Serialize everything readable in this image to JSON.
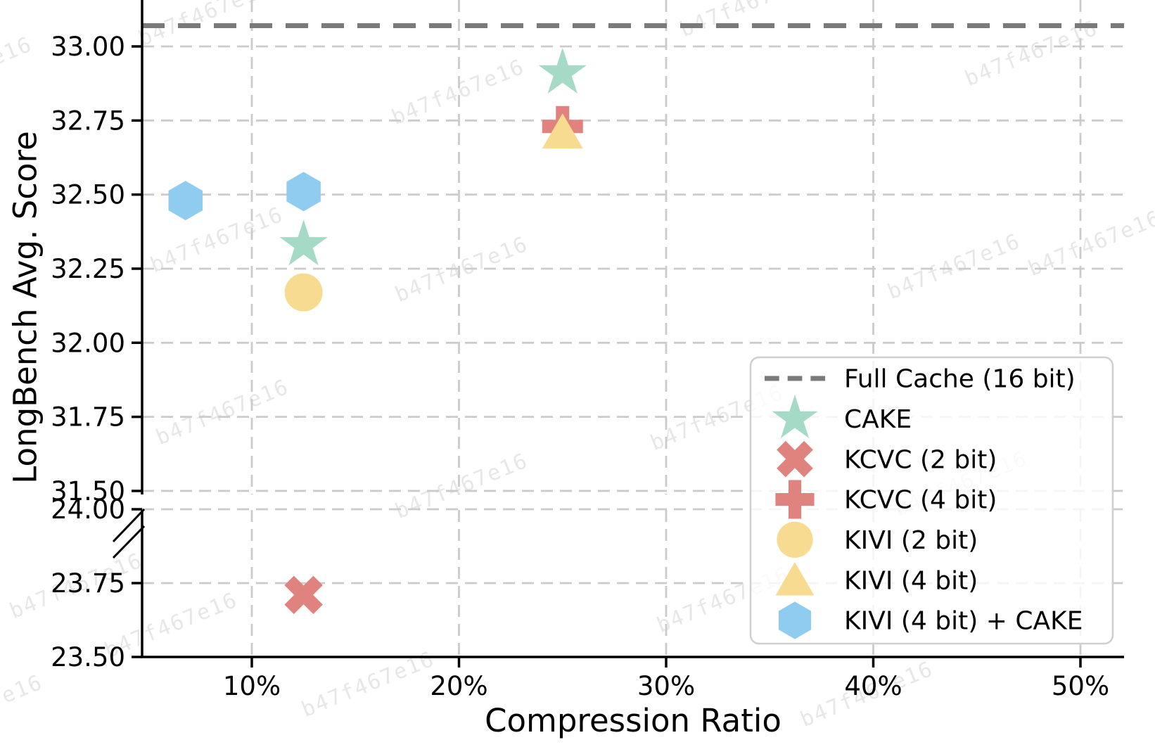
{
  "watermark": {
    "text": "b47f467e16"
  },
  "chart_data": {
    "type": "scatter",
    "title": "",
    "xlabel": "Compression Ratio",
    "ylabel": "LongBench Avg. Score",
    "x_axis": {
      "tick_labels": [
        "10%",
        "20%",
        "30%",
        "40%",
        "50%"
      ],
      "tick_values": [
        10,
        20,
        30,
        40,
        50
      ],
      "range_percent": [
        4.7,
        52.1
      ],
      "grid": true
    },
    "y_axis": {
      "broken": true,
      "top_panel": {
        "tick_labels": [
          "33.00",
          "32.75",
          "32.50",
          "32.25",
          "32.00",
          "31.75",
          "31.50"
        ],
        "tick_values": [
          33.0,
          32.75,
          32.5,
          32.25,
          32.0,
          31.75,
          31.5
        ],
        "range": [
          31.47,
          33.16
        ]
      },
      "bottom_panel": {
        "tick_labels": [
          "24.00",
          "23.75",
          "23.50"
        ],
        "tick_values": [
          24.0,
          23.75,
          23.5
        ],
        "range": [
          23.5,
          24.02
        ]
      },
      "grid": true
    },
    "reference_line": {
      "label": "Full Cache (16 bit)",
      "value": 33.07,
      "color": "#7a7a7a",
      "style": "dashed"
    },
    "series": [
      {
        "name": "CAKE",
        "marker": "star",
        "color": "#a5dac7",
        "points": [
          {
            "x": 12.5,
            "y": 32.33
          },
          {
            "x": 25.0,
            "y": 32.91
          }
        ]
      },
      {
        "name": "KCVC (2 bit)",
        "marker": "x",
        "color": "#e0827e",
        "points": [
          {
            "x": 12.5,
            "y": 23.71
          }
        ]
      },
      {
        "name": "KCVC (4 bit)",
        "marker": "plus",
        "color": "#e0827e",
        "points": [
          {
            "x": 25.0,
            "y": 32.73
          }
        ]
      },
      {
        "name": "KIVI (2 bit)",
        "marker": "circle",
        "color": "#f6db90",
        "points": [
          {
            "x": 12.5,
            "y": 32.17
          }
        ]
      },
      {
        "name": "KIVI (4 bit)",
        "marker": "triangle",
        "color": "#f6db90",
        "points": [
          {
            "x": 25.0,
            "y": 32.71
          }
        ]
      },
      {
        "name": "KIVI (4 bit) + CAKE",
        "marker": "hexagon",
        "color": "#90cbf0",
        "points": [
          {
            "x": 6.8,
            "y": 32.48
          },
          {
            "x": 12.5,
            "y": 32.51
          }
        ]
      }
    ],
    "legend": {
      "position": "lower right",
      "entries": [
        {
          "label": "Full Cache (16 bit)",
          "marker": "dashed-line",
          "color": "#7a7a7a"
        },
        {
          "label": "CAKE",
          "marker": "star",
          "color": "#a5dac7"
        },
        {
          "label": "KCVC (2 bit)",
          "marker": "x",
          "color": "#e0827e"
        },
        {
          "label": "KCVC (4 bit)",
          "marker": "plus",
          "color": "#e0827e"
        },
        {
          "label": "KIVI (2 bit)",
          "marker": "circle",
          "color": "#f6db90"
        },
        {
          "label": "KIVI (4 bit)",
          "marker": "triangle",
          "color": "#f6db90"
        },
        {
          "label": "KIVI (4 bit) + CAKE",
          "marker": "hexagon",
          "color": "#90cbf0"
        }
      ]
    },
    "style": {
      "grid_color": "#cbcbcb",
      "axis_color": "#000000",
      "legend_border": "#cfcfcf"
    }
  }
}
